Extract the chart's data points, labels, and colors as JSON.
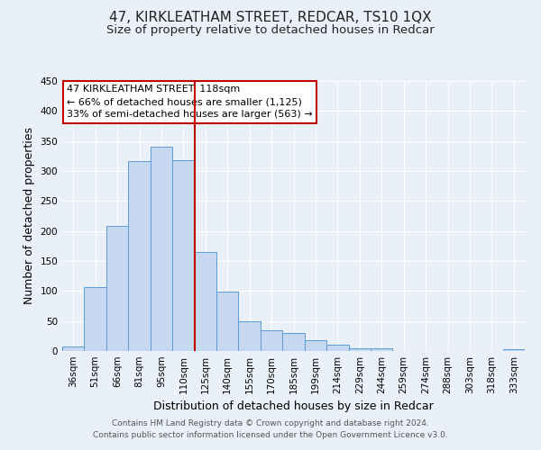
{
  "title": "47, KIRKLEATHAM STREET, REDCAR, TS10 1QX",
  "subtitle": "Size of property relative to detached houses in Redcar",
  "xlabel": "Distribution of detached houses by size in Redcar",
  "ylabel": "Number of detached properties",
  "bar_labels": [
    "36sqm",
    "51sqm",
    "66sqm",
    "81sqm",
    "95sqm",
    "110sqm",
    "125sqm",
    "140sqm",
    "155sqm",
    "170sqm",
    "185sqm",
    "199sqm",
    "214sqm",
    "229sqm",
    "244sqm",
    "259sqm",
    "274sqm",
    "288sqm",
    "303sqm",
    "318sqm",
    "333sqm"
  ],
  "bar_values": [
    7,
    106,
    209,
    316,
    341,
    318,
    165,
    99,
    50,
    35,
    30,
    18,
    10,
    4,
    5,
    0,
    0,
    0,
    0,
    0,
    3
  ],
  "bar_color": "#c5d8f0",
  "bar_edge_color": "#5b9bd5",
  "vline_x": 5.5,
  "vline_color": "#c00000",
  "ylim": [
    0,
    450
  ],
  "yticks": [
    0,
    50,
    100,
    150,
    200,
    250,
    300,
    350,
    400,
    450
  ],
  "annotation_title": "47 KIRKLEATHAM STREET: 118sqm",
  "annotation_line1": "← 66% of detached houses are smaller (1,125)",
  "annotation_line2": "33% of semi-detached houses are larger (563) →",
  "annotation_box_color": "#ffffff",
  "annotation_box_edge": "#c00000",
  "footer1": "Contains HM Land Registry data © Crown copyright and database right 2024.",
  "footer2": "Contains public sector information licensed under the Open Government Licence v3.0.",
  "bg_color": "#eaf0f8",
  "grid_color": "#ffffff",
  "title_fontsize": 11,
  "subtitle_fontsize": 9.5,
  "axis_label_fontsize": 9,
  "tick_fontsize": 7.5,
  "annotation_fontsize": 8,
  "footer_fontsize": 6.5
}
